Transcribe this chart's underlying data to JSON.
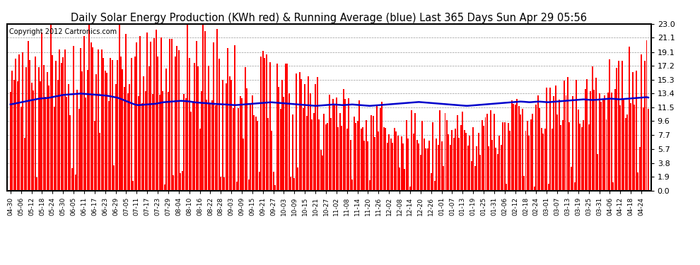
{
  "title": "Daily Solar Energy Production (KWh red) & Running Average (blue) Last 365 Days Sun Apr 29 05:56",
  "copyright_text": "Copyright 2012 Cartronics.com",
  "yticks": [
    0.0,
    1.9,
    3.8,
    5.7,
    7.7,
    9.6,
    11.5,
    13.4,
    15.3,
    17.2,
    19.1,
    21.1,
    23.0
  ],
  "ymax": 23.0,
  "ymin": 0.0,
  "bar_color": "#ff0000",
  "avg_color": "#0000cc",
  "background_color": "#ffffff",
  "grid_color": "#999999",
  "title_fontsize": 10.5,
  "avg_curve": [
    11.9,
    11.95,
    12.0,
    12.05,
    12.1,
    12.15,
    12.2,
    12.25,
    12.3,
    12.35,
    12.4,
    12.45,
    12.5,
    12.55,
    12.6,
    12.65,
    12.7,
    12.72,
    12.74,
    12.76,
    12.78,
    12.8,
    12.85,
    12.9,
    12.95,
    13.0,
    13.05,
    13.1,
    13.15,
    13.2,
    13.22,
    13.24,
    13.26,
    13.28,
    13.3,
    13.32,
    13.34,
    13.36,
    13.38,
    13.4,
    13.38,
    13.36,
    13.34,
    13.32,
    13.3,
    13.28,
    13.26,
    13.24,
    13.22,
    13.2,
    13.18,
    13.16,
    13.14,
    13.12,
    13.1,
    13.05,
    13.0,
    12.95,
    12.9,
    12.85,
    12.8,
    12.7,
    12.6,
    12.5,
    12.4,
    12.3,
    12.2,
    12.1,
    12.0,
    11.9,
    11.85,
    11.8,
    11.82,
    11.84,
    11.86,
    11.88,
    11.9,
    11.92,
    11.94,
    11.96,
    11.98,
    12.0,
    12.05,
    12.1,
    12.15,
    12.2,
    12.22,
    12.24,
    12.26,
    12.28,
    12.3,
    12.32,
    12.34,
    12.36,
    12.38,
    12.4,
    12.38,
    12.36,
    12.34,
    12.32,
    12.3,
    12.25,
    12.2,
    12.18,
    12.16,
    12.14,
    12.12,
    12.1,
    12.08,
    12.06,
    12.04,
    12.02,
    12.0,
    11.98,
    11.96,
    11.95,
    11.94,
    11.93,
    11.92,
    11.91,
    11.9,
    11.88,
    11.86,
    11.84,
    11.82,
    11.8,
    11.82,
    11.84,
    11.86,
    11.88,
    11.9,
    11.92,
    11.94,
    11.96,
    11.98,
    12.0,
    12.02,
    12.04,
    12.06,
    12.08,
    12.1,
    12.12,
    12.14,
    12.16,
    12.18,
    12.2,
    12.18,
    12.16,
    12.14,
    12.12,
    12.1,
    12.08,
    12.06,
    12.04,
    12.02,
    12.0,
    11.98,
    11.96,
    11.94,
    11.92,
    11.9,
    11.88,
    11.86,
    11.84,
    11.82,
    11.8,
    11.78,
    11.76,
    11.74,
    11.72,
    11.7,
    11.72,
    11.74,
    11.76,
    11.78,
    11.8,
    11.82,
    11.84,
    11.86,
    11.88,
    11.9,
    11.88,
    11.86,
    11.84,
    11.82,
    11.8,
    11.82,
    11.84,
    11.86,
    11.88,
    11.9,
    11.88,
    11.86,
    11.84,
    11.82,
    11.8,
    11.78,
    11.76,
    11.74,
    11.72,
    11.7,
    11.72,
    11.74,
    11.76,
    11.78,
    11.8,
    11.82,
    11.84,
    11.86,
    11.88,
    11.9,
    11.92,
    11.94,
    11.96,
    11.98,
    12.0,
    12.02,
    12.04,
    12.06,
    12.08,
    12.1,
    12.12,
    12.14,
    12.16,
    12.18,
    12.2,
    12.22,
    12.24,
    12.22,
    12.2,
    12.18,
    12.16,
    12.14,
    12.12,
    12.1,
    12.08,
    12.06,
    12.04,
    12.02,
    12.0,
    11.98,
    11.96,
    11.94,
    11.92,
    11.9,
    11.88,
    11.86,
    11.84,
    11.82,
    11.8,
    11.78,
    11.76,
    11.74,
    11.72,
    11.7,
    11.72,
    11.74,
    11.76,
    11.78,
    11.8,
    11.82,
    11.84,
    11.86,
    11.88,
    11.9,
    11.92,
    11.94,
    11.96,
    11.98,
    12.0,
    12.02,
    12.04,
    12.06,
    12.08,
    12.1,
    12.12,
    12.14,
    12.16,
    12.18,
    12.2,
    12.22,
    12.24,
    12.26,
    12.28,
    12.3,
    12.28,
    12.26,
    12.24,
    12.22,
    12.2,
    12.22,
    12.24,
    12.26,
    12.28,
    12.3,
    12.28,
    12.26,
    12.24,
    12.22,
    12.2,
    12.22,
    12.24,
    12.26,
    12.28,
    12.3,
    12.32,
    12.34,
    12.36,
    12.38,
    12.4,
    12.42,
    12.44,
    12.46,
    12.48,
    12.5,
    12.52,
    12.54,
    12.56,
    12.58,
    12.6,
    12.58,
    12.56,
    12.54,
    12.52,
    12.5,
    12.52,
    12.54,
    12.56,
    12.58,
    12.6,
    12.62,
    12.64,
    12.66,
    12.68,
    12.7,
    12.68,
    12.66,
    12.64,
    12.62,
    12.6,
    12.62,
    12.64,
    12.66,
    12.68,
    12.7,
    12.72,
    12.74,
    12.76,
    12.78,
    12.8,
    12.82,
    12.84,
    12.86,
    12.88,
    12.9,
    12.85
  ],
  "x_date_labels": [
    "04-30",
    "05-06",
    "05-12",
    "05-18",
    "05-24",
    "05-30",
    "06-05",
    "06-11",
    "06-17",
    "06-23",
    "06-29",
    "07-05",
    "07-11",
    "07-17",
    "07-23",
    "07-29",
    "08-04",
    "08-10",
    "08-16",
    "08-22",
    "08-28",
    "09-03",
    "09-09",
    "09-15",
    "09-21",
    "09-27",
    "10-03",
    "10-09",
    "10-15",
    "10-21",
    "10-27",
    "11-02",
    "11-08",
    "11-14",
    "11-20",
    "11-26",
    "12-02",
    "12-08",
    "12-14",
    "12-20",
    "12-26",
    "01-01",
    "01-07",
    "01-13",
    "01-19",
    "01-25",
    "01-31",
    "02-06",
    "02-12",
    "02-18",
    "02-24",
    "03-01",
    "03-07",
    "03-13",
    "03-19",
    "03-25",
    "03-31",
    "04-06",
    "04-12",
    "04-18",
    "04-24"
  ]
}
